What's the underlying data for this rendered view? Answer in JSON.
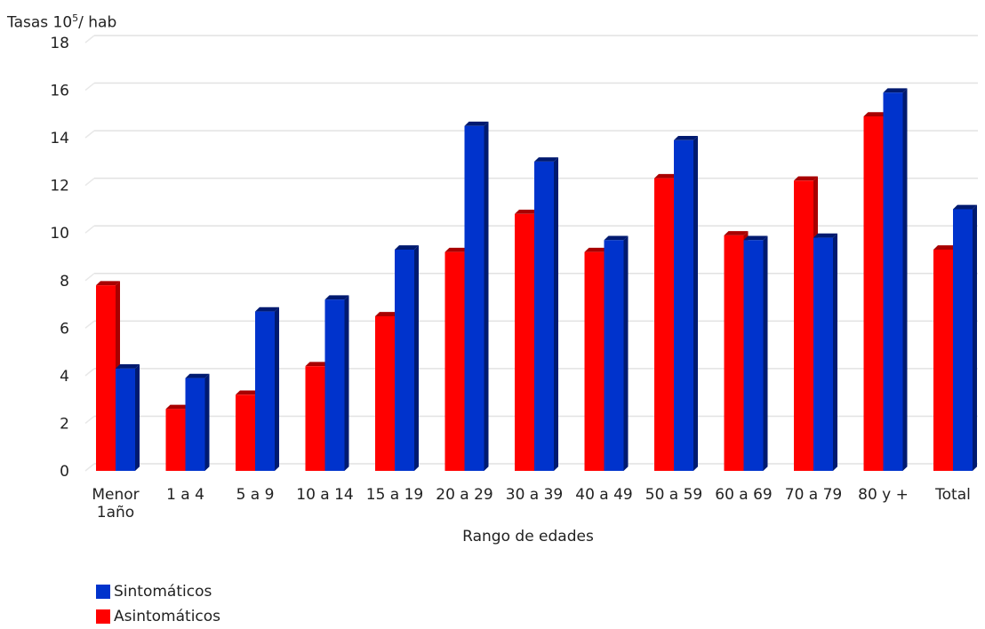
{
  "chart_data": {
    "type": "bar",
    "title": "",
    "ylabel_prefix": "Tasas 10",
    "ylabel_sup": "5",
    "ylabel_suffix": "/ hab",
    "xlabel": "Rango de edades",
    "ylim": [
      0,
      18
    ],
    "yticks": [
      0,
      2,
      4,
      6,
      8,
      10,
      12,
      14,
      16,
      18
    ],
    "grid": true,
    "legend_position": "bottom-left",
    "categories": [
      [
        "Menor",
        "1año"
      ],
      [
        "1 a 4"
      ],
      [
        "5 a 9"
      ],
      [
        "10 a 14"
      ],
      [
        "15 a 19"
      ],
      [
        "20 a 29"
      ],
      [
        "30 a 39"
      ],
      [
        "40 a 49"
      ],
      [
        "50 a 59"
      ],
      [
        "60 a 69"
      ],
      [
        "70 a 79"
      ],
      [
        "80 y +"
      ],
      [
        "Total"
      ]
    ],
    "series": [
      {
        "name": "Asintomáticos",
        "color": "#ff0000",
        "shade": "#a80000",
        "values": [
          7.8,
          2.6,
          3.2,
          4.4,
          6.5,
          9.2,
          10.8,
          9.2,
          12.3,
          9.9,
          12.2,
          14.9,
          9.3
        ]
      },
      {
        "name": "Sintomáticos",
        "color": "#0033cc",
        "shade": "#001a70",
        "values": [
          4.3,
          3.9,
          6.7,
          7.2,
          9.3,
          14.5,
          13.0,
          9.7,
          13.9,
          9.7,
          9.8,
          15.9,
          11.0
        ]
      }
    ],
    "legend_order": [
      1,
      0
    ]
  }
}
